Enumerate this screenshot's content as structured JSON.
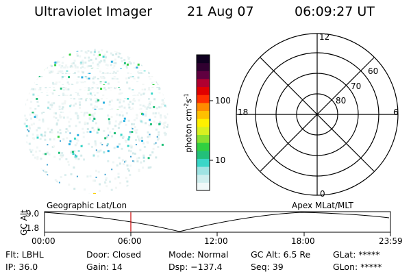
{
  "header": {
    "instrument": "Ultraviolet Imager",
    "date": "21 Aug 07",
    "time": "06:09:27 UT"
  },
  "colorbar": {
    "unit": "photon cm",
    "unit_exp1": "-2",
    "unit_mid": "s",
    "unit_exp2": "-1",
    "ticks": [
      "100",
      "10"
    ],
    "colors": [
      "#f0f8f8",
      "#cfeeee",
      "#9fe3e3",
      "#39d6c8",
      "#22c07a",
      "#30d040",
      "#88e030",
      "#d8f020",
      "#fff000",
      "#ffc000",
      "#ff8c00",
      "#ff3000",
      "#e00000",
      "#b00030",
      "#600040",
      "#300030",
      "#100020"
    ]
  },
  "polar_plot": {
    "mlt_labels": {
      "top": "12",
      "bottom": "0",
      "left": "18",
      "right": "6"
    },
    "lat_labels": [
      "60",
      "70",
      "80"
    ]
  },
  "timeline": {
    "left_label": "Geographic Lat/Lon",
    "right_label": "Apex MLat/MLT",
    "axis_label": "GC Alt",
    "y_top": "9.0",
    "y_bottom": "1.8",
    "x_ticks": [
      "00:00",
      "06:00",
      "12:00",
      "18:00",
      "23:59"
    ],
    "marker_color": "#cc0000"
  },
  "status": {
    "row1": [
      {
        "label": "Flt:",
        "value": "LBHL"
      },
      {
        "label": "Door:",
        "value": "Closed"
      },
      {
        "label": "Mode:",
        "value": "Normal"
      },
      {
        "label": "GC Alt:",
        "value": "6.5 Re"
      },
      {
        "label": "GLat:",
        "value": "*****"
      }
    ],
    "row2": [
      {
        "label": "IP:",
        "value": "36.0"
      },
      {
        "label": "Gain:",
        "value": "14"
      },
      {
        "label": "Dsp:",
        "value": "−137.4"
      },
      {
        "label": "Seq:",
        "value": "39"
      },
      {
        "label": "GLon:",
        "value": "*****"
      }
    ]
  }
}
